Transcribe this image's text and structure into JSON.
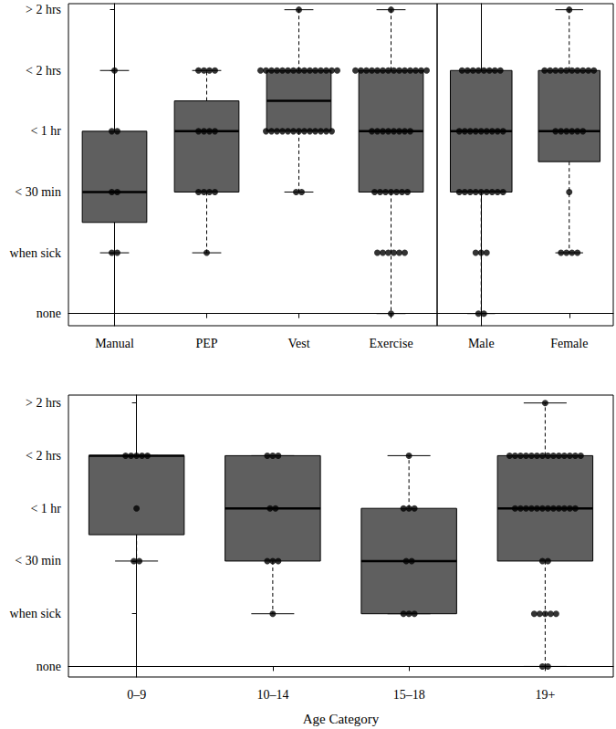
{
  "chart_data": [
    {
      "type": "boxplot",
      "categories": [
        "Manual",
        "PEP",
        "Vest",
        "Exercise"
      ],
      "boxes": [
        [
          1,
          1.5,
          2,
          3,
          4
        ],
        [
          1,
          2,
          3,
          3.5,
          4
        ],
        [
          2,
          3,
          3.5,
          4,
          5
        ],
        [
          0,
          2,
          3,
          4,
          5
        ]
      ],
      "points": [
        [
          4,
          3,
          3,
          2,
          2,
          1,
          1
        ],
        [
          4,
          4,
          4,
          4,
          3,
          3,
          3,
          3,
          2,
          2,
          2,
          2,
          1
        ],
        [
          5,
          4,
          4,
          4,
          4,
          4,
          4,
          4,
          4,
          4,
          4,
          4,
          4,
          4,
          4,
          4,
          3,
          3,
          3,
          3,
          3,
          3,
          3,
          3,
          3,
          3,
          3,
          3,
          3,
          2,
          2
        ],
        [
          5,
          4,
          4,
          4,
          4,
          4,
          4,
          4,
          4,
          4,
          4,
          4,
          4,
          4,
          4,
          3,
          3,
          3,
          3,
          3,
          3,
          3,
          3,
          2,
          2,
          2,
          2,
          2,
          2,
          2,
          1,
          1,
          1,
          1,
          1,
          1,
          0
        ]
      ],
      "color": "#5f5f5f",
      "ylim": [
        -0.2,
        5.1
      ],
      "yticks": [
        {
          "value": 0,
          "label": "none"
        },
        {
          "value": 1,
          "label": "when sick"
        },
        {
          "value": 2,
          "label": "< 30 min"
        },
        {
          "value": 3,
          "label": "< 1 hr"
        },
        {
          "value": 4,
          "label": "< 2 hrs"
        },
        {
          "value": 5,
          "label": "> 2 hrs"
        }
      ]
    },
    {
      "type": "boxplot",
      "categories": [
        "Male",
        "Female"
      ],
      "boxes": [
        [
          0,
          2,
          3,
          4,
          4
        ],
        [
          1,
          2.5,
          3,
          4,
          5
        ]
      ],
      "points": [
        [
          4,
          4,
          4,
          4,
          4,
          4,
          4,
          4,
          3,
          3,
          3,
          3,
          3,
          3,
          3,
          3,
          3,
          2,
          2,
          2,
          2,
          2,
          2,
          2,
          2,
          2,
          1,
          1,
          1,
          0,
          0
        ],
        [
          5,
          4,
          4,
          4,
          4,
          4,
          4,
          4,
          4,
          4,
          4,
          3,
          3,
          3,
          3,
          3,
          3,
          2,
          1,
          1,
          1,
          1
        ]
      ],
      "color": "#5f5f5f",
      "ylim": [
        -0.2,
        5.1
      ],
      "tick_labels": "x"
    },
    {
      "type": "boxplot",
      "categories": [
        "0–9",
        "10–14",
        "15–18",
        "19+"
      ],
      "xlabel": "Age Category",
      "boxes": [
        [
          2,
          2.5,
          4,
          4,
          4
        ],
        [
          1,
          2,
          3,
          4,
          4
        ],
        [
          1,
          1,
          2,
          3,
          4
        ],
        [
          0,
          2,
          3,
          4,
          5
        ]
      ],
      "points": [
        [
          4,
          4,
          4,
          4,
          4,
          3,
          2,
          2
        ],
        [
          4,
          4,
          4,
          3,
          3,
          2,
          2,
          2,
          1
        ],
        [
          4,
          3,
          3,
          3,
          2,
          2,
          1,
          1,
          1
        ],
        [
          5,
          4,
          4,
          4,
          4,
          4,
          4,
          4,
          4,
          4,
          4,
          4,
          4,
          4,
          4,
          3,
          3,
          3,
          3,
          3,
          3,
          3,
          3,
          3,
          3,
          3,
          3,
          2,
          2,
          1,
          1,
          1,
          1,
          1,
          0,
          0
        ]
      ],
      "color": "#5f5f5f",
      "ylim": [
        -0.2,
        5.15
      ],
      "yticks": [
        {
          "value": 0,
          "label": "none"
        },
        {
          "value": 1,
          "label": "when sick"
        },
        {
          "value": 2,
          "label": "< 30 min"
        },
        {
          "value": 3,
          "label": "< 1 hr"
        },
        {
          "value": 4,
          "label": "< 2 hrs"
        },
        {
          "value": 5,
          "label": "> 2 hrs"
        }
      ]
    }
  ]
}
